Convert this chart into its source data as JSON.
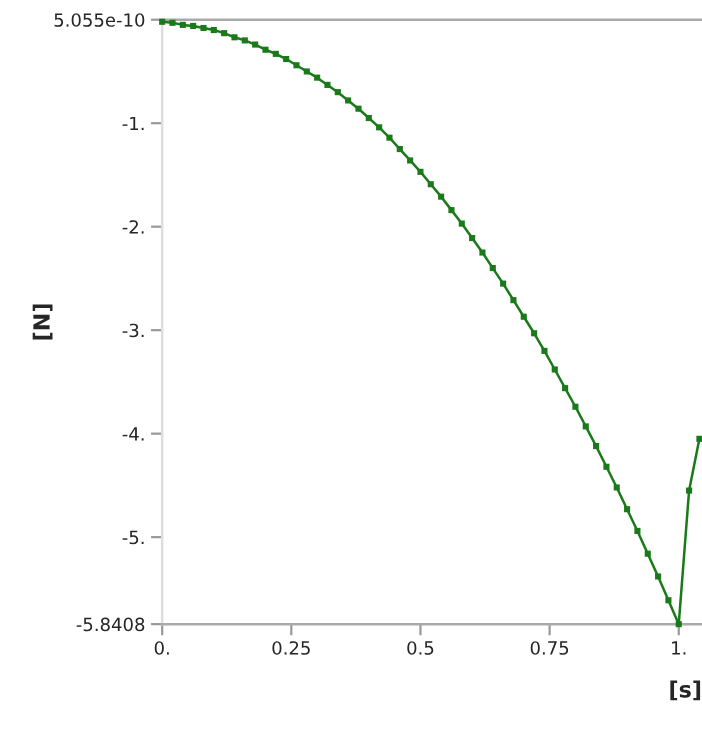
{
  "chart_data": {
    "type": "line",
    "xlabel": "[s]",
    "ylabel": "[N]",
    "x": [
      0,
      0.02,
      0.04,
      0.06,
      0.08,
      0.1,
      0.12,
      0.14,
      0.16,
      0.18,
      0.2,
      0.22,
      0.24,
      0.26,
      0.28,
      0.3,
      0.32,
      0.34,
      0.36,
      0.38,
      0.4,
      0.42,
      0.44,
      0.46,
      0.48,
      0.5,
      0.52,
      0.54,
      0.56,
      0.58,
      0.6,
      0.62,
      0.64,
      0.66,
      0.68,
      0.7,
      0.72,
      0.74,
      0.76,
      0.78,
      0.8,
      0.82,
      0.84,
      0.86,
      0.88,
      0.9,
      0.92,
      0.94,
      0.96,
      0.98,
      1.0,
      1.02,
      1.04
    ],
    "series": [
      {
        "color": "#1a7a1a",
        "values": [
          -0.02,
          -0.03,
          -0.05,
          -0.06,
          -0.08,
          -0.1,
          -0.13,
          -0.17,
          -0.2,
          -0.24,
          -0.29,
          -0.33,
          -0.38,
          -0.44,
          -0.5,
          -0.56,
          -0.63,
          -0.7,
          -0.78,
          -0.86,
          -0.95,
          -1.04,
          -1.14,
          -1.25,
          -1.36,
          -1.47,
          -1.59,
          -1.71,
          -1.84,
          -1.97,
          -2.11,
          -2.25,
          -2.4,
          -2.55,
          -2.71,
          -2.87,
          -3.03,
          -3.2,
          -3.38,
          -3.56,
          -3.74,
          -3.93,
          -4.12,
          -4.32,
          -4.52,
          -4.73,
          -4.94,
          -5.16,
          -5.38,
          -5.61,
          -5.8408,
          -4.55,
          -4.05
        ]
      }
    ],
    "xlim": [
      0,
      1.045
    ],
    "ylim": [
      -5.8408,
      5.055e-10
    ],
    "xticks": [
      {
        "value": 0,
        "label": "0."
      },
      0.25,
      0.5,
      0.75,
      {
        "value": 1,
        "label": "1."
      }
    ],
    "yticks": [
      {
        "value": -5.8408,
        "label": "-5.8408"
      },
      {
        "value": -5,
        "label": "-5."
      },
      {
        "value": -4,
        "label": "-4."
      },
      {
        "value": -3,
        "label": "-3."
      },
      {
        "value": -2,
        "label": "-2."
      },
      {
        "value": -1,
        "label": "-1."
      },
      {
        "value": 5.055e-10,
        "label": "5.055e-10"
      }
    ],
    "marker": "square",
    "line_style": "solid",
    "grid": false,
    "legend": false
  }
}
